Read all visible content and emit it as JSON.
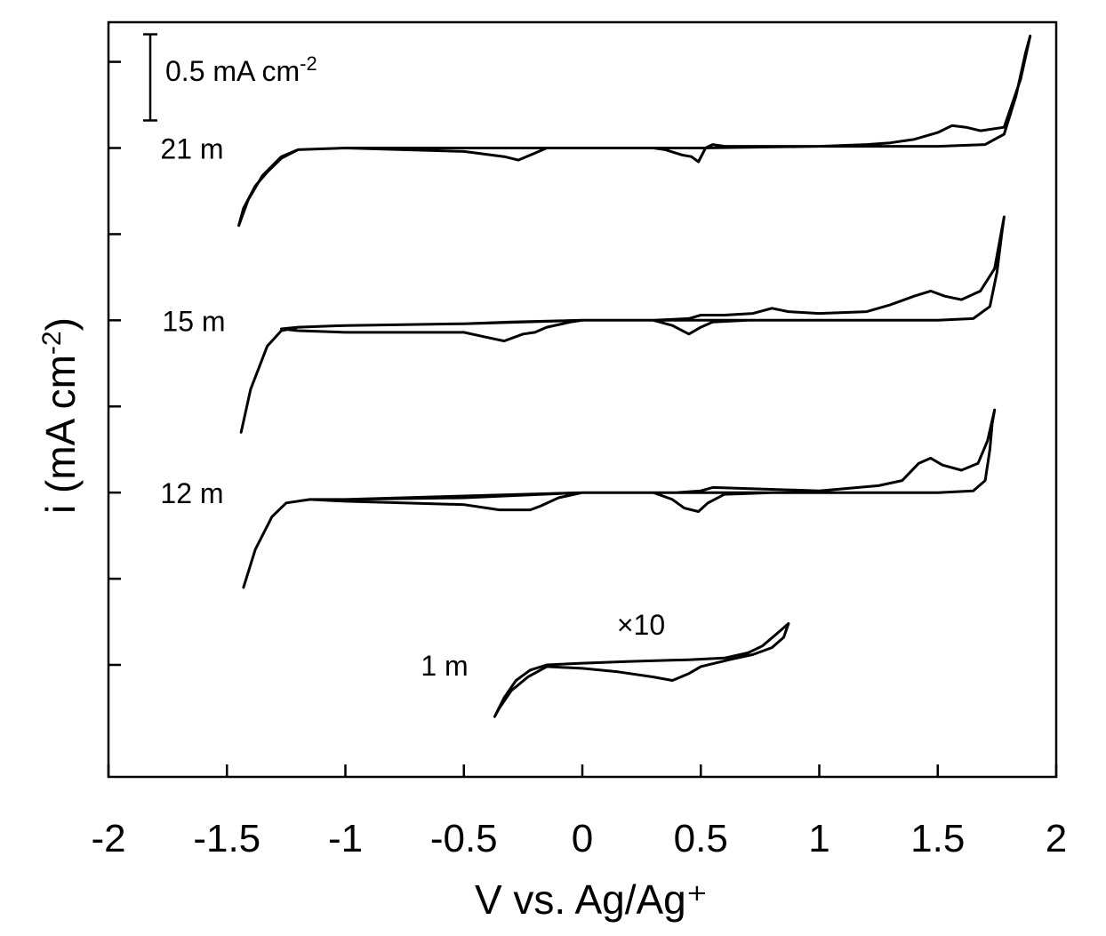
{
  "chart_data": {
    "type": "line",
    "title": "",
    "xlabel": "V vs. Ag/Ag⁺",
    "ylabel_main": "i (mA cm",
    "ylabel_sup": "-2",
    "ylabel_close": ")",
    "xlim": [
      -2,
      2
    ],
    "ylim": [
      -3.65,
      0.73
    ],
    "x_ticks": [
      -2,
      -1.5,
      -1,
      -0.5,
      0,
      0.5,
      1,
      1.5,
      2
    ],
    "x_tick_labels": [
      "-2",
      "-1.5",
      "-1",
      "-0.5",
      "0",
      "0.5",
      "1",
      "1.5",
      "2"
    ],
    "y_ticks": [
      0.5,
      0,
      -0.5,
      -1,
      -1.5,
      -2,
      -2.5,
      -3
    ],
    "scale_bar": {
      "value": 0.5,
      "label_main": "0.5 mA cm",
      "label_sup": "-2"
    },
    "series": [
      {
        "name": "21 m",
        "label": "21 m",
        "offset": 0,
        "points": [
          [
            -1.45,
            -0.45
          ],
          [
            -1.41,
            -0.3
          ],
          [
            -1.35,
            -0.16
          ],
          [
            -1.27,
            -0.05
          ],
          [
            -1.2,
            -0.01
          ],
          [
            -1.0,
            0.0
          ],
          [
            -0.5,
            0.0
          ],
          [
            -0.3,
            0.0
          ],
          [
            0.0,
            0.0
          ],
          [
            0.3,
            0.0
          ],
          [
            0.5,
            0.0
          ],
          [
            1.0,
            0.01
          ],
          [
            1.5,
            0.01
          ],
          [
            1.7,
            0.02
          ],
          [
            1.78,
            0.08
          ],
          [
            1.83,
            0.3
          ],
          [
            1.87,
            0.55
          ],
          [
            1.89,
            0.65
          ],
          [
            1.85,
            0.4
          ],
          [
            1.78,
            0.12
          ],
          [
            1.68,
            0.1
          ],
          [
            1.62,
            0.12
          ],
          [
            1.56,
            0.13
          ],
          [
            1.5,
            0.09
          ],
          [
            1.4,
            0.05
          ],
          [
            1.3,
            0.03
          ],
          [
            1.2,
            0.02
          ],
          [
            1.0,
            0.01
          ],
          [
            0.7,
            0.01
          ],
          [
            0.6,
            0.01
          ],
          [
            0.55,
            0.02
          ],
          [
            0.52,
            0.0
          ],
          [
            0.49,
            -0.08
          ],
          [
            0.46,
            -0.05
          ],
          [
            0.42,
            -0.04
          ],
          [
            0.35,
            -0.01
          ],
          [
            0.3,
            0.0
          ],
          [
            0.0,
            0.0
          ],
          [
            -0.15,
            0.0
          ],
          [
            -0.2,
            -0.03
          ],
          [
            -0.27,
            -0.07
          ],
          [
            -0.33,
            -0.05
          ],
          [
            -0.5,
            -0.02
          ],
          [
            -1.0,
            0.0
          ],
          [
            -1.2,
            -0.01
          ],
          [
            -1.27,
            -0.06
          ],
          [
            -1.33,
            -0.14
          ],
          [
            -1.38,
            -0.22
          ],
          [
            -1.43,
            -0.35
          ],
          [
            -1.45,
            -0.45
          ]
        ]
      },
      {
        "name": "15 m",
        "label": "15 m",
        "offset": -1,
        "points": [
          [
            -1.44,
            -1.65
          ],
          [
            -1.4,
            -1.4
          ],
          [
            -1.33,
            -1.15
          ],
          [
            -1.27,
            -1.06
          ],
          [
            -1.2,
            -1.04
          ],
          [
            -1.0,
            -1.03
          ],
          [
            -0.5,
            -1.02
          ],
          [
            0.0,
            -1.0
          ],
          [
            0.5,
            -1.0
          ],
          [
            1.0,
            -1.0
          ],
          [
            1.5,
            -1.0
          ],
          [
            1.65,
            -0.99
          ],
          [
            1.72,
            -0.92
          ],
          [
            1.75,
            -0.72
          ],
          [
            1.77,
            -0.5
          ],
          [
            1.78,
            -0.4
          ],
          [
            1.74,
            -0.7
          ],
          [
            1.68,
            -0.83
          ],
          [
            1.6,
            -0.88
          ],
          [
            1.53,
            -0.86
          ],
          [
            1.47,
            -0.83
          ],
          [
            1.4,
            -0.86
          ],
          [
            1.3,
            -0.91
          ],
          [
            1.2,
            -0.95
          ],
          [
            1.0,
            -0.96
          ],
          [
            0.87,
            -0.95
          ],
          [
            0.8,
            -0.93
          ],
          [
            0.72,
            -0.96
          ],
          [
            0.6,
            -0.97
          ],
          [
            0.5,
            -0.97
          ],
          [
            0.45,
            -0.99
          ],
          [
            0.3,
            -1.0
          ],
          [
            0.0,
            -1.0
          ],
          [
            -0.3,
            -1.01
          ],
          [
            -0.5,
            -1.02
          ],
          [
            -1.0,
            -1.03
          ],
          [
            -1.2,
            -1.04
          ],
          [
            -1.27,
            -1.05
          ],
          [
            -1.2,
            -1.06
          ],
          [
            -1.0,
            -1.07
          ],
          [
            -0.5,
            -1.07
          ],
          [
            -0.4,
            -1.1
          ],
          [
            -0.33,
            -1.12
          ],
          [
            -0.25,
            -1.08
          ],
          [
            -0.2,
            -1.07
          ],
          [
            -0.15,
            -1.04
          ],
          [
            -0.05,
            -1.01
          ],
          [
            0.0,
            -1.0
          ],
          [
            0.3,
            -1.0
          ],
          [
            0.38,
            -1.03
          ],
          [
            0.45,
            -1.08
          ],
          [
            0.5,
            -1.04
          ],
          [
            0.55,
            -1.01
          ],
          [
            0.7,
            -1.0
          ],
          [
            1.0,
            -1.0
          ],
          [
            1.5,
            -1.0
          ],
          [
            1.65,
            -0.99
          ],
          [
            1.72,
            -0.92
          ],
          [
            1.75,
            -0.72
          ]
        ]
      },
      {
        "name": "12 m",
        "label": "12 m",
        "offset": -2,
        "points": [
          [
            -1.43,
            -2.55
          ],
          [
            -1.38,
            -2.33
          ],
          [
            -1.31,
            -2.14
          ],
          [
            -1.25,
            -2.06
          ],
          [
            -1.15,
            -2.04
          ],
          [
            -1.0,
            -2.04
          ],
          [
            -0.5,
            -2.03
          ],
          [
            0.0,
            -2.0
          ],
          [
            0.5,
            -2.0
          ],
          [
            1.0,
            -2.0
          ],
          [
            1.5,
            -2.0
          ],
          [
            1.65,
            -1.99
          ],
          [
            1.7,
            -1.93
          ],
          [
            1.72,
            -1.75
          ],
          [
            1.73,
            -1.6
          ],
          [
            1.74,
            -1.52
          ],
          [
            1.71,
            -1.7
          ],
          [
            1.67,
            -1.83
          ],
          [
            1.6,
            -1.87
          ],
          [
            1.52,
            -1.84
          ],
          [
            1.47,
            -1.8
          ],
          [
            1.42,
            -1.83
          ],
          [
            1.35,
            -1.93
          ],
          [
            1.25,
            -1.96
          ],
          [
            1.0,
            -1.99
          ],
          [
            0.55,
            -1.97
          ],
          [
            0.5,
            -1.99
          ],
          [
            0.4,
            -2.0
          ],
          [
            0.0,
            -2.0
          ],
          [
            -0.5,
            -2.02
          ],
          [
            -1.0,
            -2.04
          ],
          [
            -1.15,
            -2.04
          ],
          [
            -1.0,
            -2.05
          ],
          [
            -0.5,
            -2.07
          ],
          [
            -0.35,
            -2.1
          ],
          [
            -0.28,
            -2.1
          ],
          [
            -0.22,
            -2.1
          ],
          [
            -0.18,
            -2.08
          ],
          [
            -0.1,
            -2.03
          ],
          [
            0.0,
            -2.0
          ],
          [
            0.3,
            -2.0
          ],
          [
            0.38,
            -2.04
          ],
          [
            0.43,
            -2.09
          ],
          [
            0.49,
            -2.11
          ],
          [
            0.53,
            -2.06
          ],
          [
            0.6,
            -2.01
          ],
          [
            0.8,
            -2.0
          ],
          [
            1.0,
            -2.0
          ],
          [
            1.5,
            -2.0
          ],
          [
            1.65,
            -1.99
          ],
          [
            1.7,
            -1.93
          ],
          [
            1.72,
            -1.75
          ]
        ]
      },
      {
        "name": "1 m (×10)",
        "label": "1 m",
        "multiplier_label": "×10",
        "offset": -3,
        "points": [
          [
            -0.37,
            -3.3
          ],
          [
            -0.33,
            -3.19
          ],
          [
            -0.28,
            -3.09
          ],
          [
            -0.22,
            -3.03
          ],
          [
            -0.15,
            -3.0
          ],
          [
            0.0,
            -2.99
          ],
          [
            0.2,
            -2.98
          ],
          [
            0.45,
            -2.97
          ],
          [
            0.6,
            -2.96
          ],
          [
            0.7,
            -2.93
          ],
          [
            0.76,
            -2.89
          ],
          [
            0.82,
            -2.82
          ],
          [
            0.87,
            -2.76
          ],
          [
            0.85,
            -2.84
          ],
          [
            0.8,
            -2.9
          ],
          [
            0.72,
            -2.94
          ],
          [
            0.62,
            -2.97
          ],
          [
            0.5,
            -3.01
          ],
          [
            0.45,
            -3.05
          ],
          [
            0.38,
            -3.09
          ],
          [
            0.3,
            -3.07
          ],
          [
            0.15,
            -3.04
          ],
          [
            0.0,
            -3.02
          ],
          [
            -0.15,
            -3.01
          ],
          [
            -0.23,
            -3.07
          ],
          [
            -0.3,
            -3.15
          ],
          [
            -0.35,
            -3.25
          ],
          [
            -0.37,
            -3.3
          ]
        ]
      }
    ]
  }
}
